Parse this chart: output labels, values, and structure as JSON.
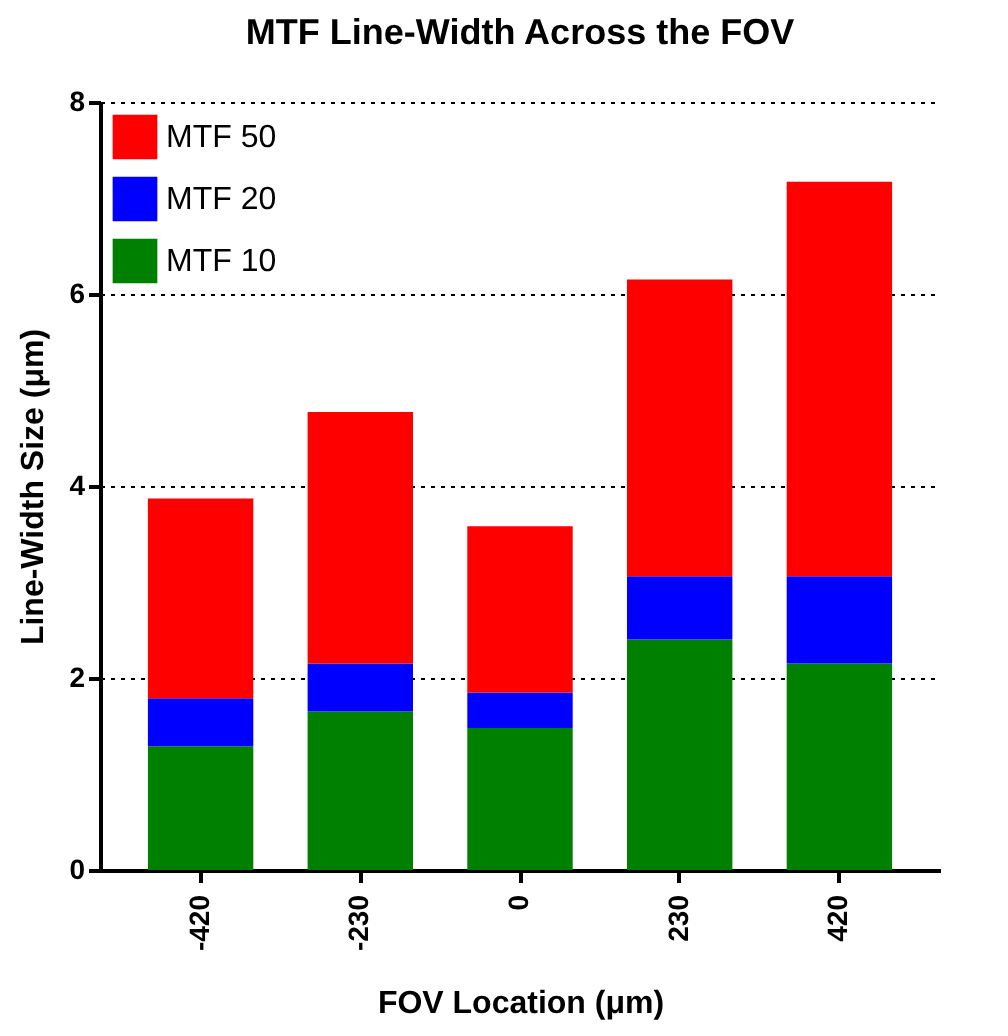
{
  "chart_data": {
    "type": "bar",
    "title": "MTF Line-Width Across the FOV",
    "xlabel": "FOV Location (μm)",
    "ylabel": "Line-Width Size (μm)",
    "categories": [
      "-420",
      "-230",
      "0",
      "230",
      "420"
    ],
    "stacked": true,
    "series": [
      {
        "name": "MTF 10",
        "color": "#008000",
        "values": [
          1.29,
          1.65,
          1.48,
          2.4,
          2.15
        ]
      },
      {
        "name": "MTF 20",
        "color": "#0000ff",
        "values": [
          0.5,
          0.5,
          0.37,
          0.66,
          0.91
        ]
      },
      {
        "name": "MTF 50",
        "color": "#ff0000",
        "values": [
          2.08,
          2.62,
          1.73,
          3.09,
          4.11
        ]
      }
    ],
    "ylim": [
      0,
      8
    ],
    "yticks": [
      0,
      2,
      4,
      6,
      8
    ],
    "grid": "y",
    "legend": "top left"
  }
}
